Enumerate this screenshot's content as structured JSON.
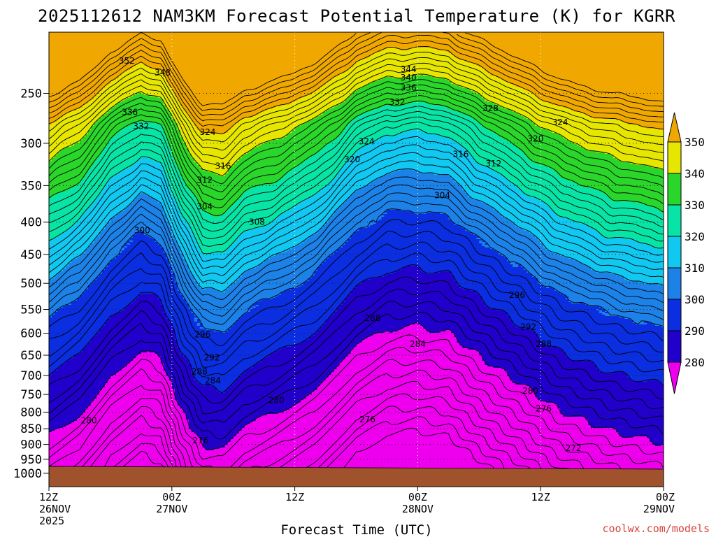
{
  "title": "2025112612 NAM3KM Forecast Potential Temperature (K) for KGRR",
  "credit": "coolwx.com/models",
  "chart_data": {
    "type": "contour",
    "title": "2025112612 NAM3KM Forecast Potential Temperature (K) for KGRR",
    "xlabel": "Forecast Time (UTC)",
    "ylabel": "",
    "y_axis": "pressure (hPa), log scale, inverted",
    "ylim": [
      1050,
      200
    ],
    "xlim_hours": [
      0,
      60
    ],
    "yticks": [
      250,
      300,
      350,
      400,
      450,
      500,
      550,
      600,
      650,
      700,
      750,
      800,
      850,
      900,
      950,
      1000
    ],
    "xticks": [
      {
        "hour": 0,
        "line1": "12Z",
        "line2": "26NOV",
        "line3": "2025"
      },
      {
        "hour": 12,
        "line1": "00Z",
        "line2": "27NOV",
        "line3": ""
      },
      {
        "hour": 24,
        "line1": "12Z",
        "line2": "",
        "line3": ""
      },
      {
        "hour": 36,
        "line1": "00Z",
        "line2": "28NOV",
        "line3": ""
      },
      {
        "hour": 48,
        "line1": "12Z",
        "line2": "",
        "line3": ""
      },
      {
        "hour": 60,
        "line1": "00Z",
        "line2": "29NOV",
        "line3": ""
      }
    ],
    "colorbar": {
      "levels": [
        280,
        290,
        300,
        310,
        320,
        330,
        340,
        350
      ],
      "colors": [
        "#ee00ee",
        "#8000f0",
        "#2200cc",
        "#0a2ee0",
        "#1c82e8",
        "#10c8f0",
        "#08e4a6",
        "#2ad62a",
        "#e6e600",
        "#f0a800"
      ]
    },
    "surface_color": "#a0522d",
    "contour_interval": 2,
    "contour_labels": [
      {
        "hour": 7.6,
        "p": 222,
        "value": "352"
      },
      {
        "hour": 11.1,
        "p": 232,
        "value": "348"
      },
      {
        "hour": 35.1,
        "p": 229,
        "value": "344"
      },
      {
        "hour": 35.1,
        "p": 236,
        "value": "340"
      },
      {
        "hour": 35.1,
        "p": 245,
        "value": "336"
      },
      {
        "hour": 34.0,
        "p": 258,
        "value": "332"
      },
      {
        "hour": 7.9,
        "p": 268,
        "value": "336"
      },
      {
        "hour": 9.0,
        "p": 282,
        "value": "332"
      },
      {
        "hour": 43.1,
        "p": 264,
        "value": "328"
      },
      {
        "hour": 49.9,
        "p": 278,
        "value": "324"
      },
      {
        "hour": 15.5,
        "p": 288,
        "value": "324"
      },
      {
        "hour": 31.0,
        "p": 298,
        "value": "324"
      },
      {
        "hour": 47.5,
        "p": 295,
        "value": "320"
      },
      {
        "hour": 29.6,
        "p": 318,
        "value": "320"
      },
      {
        "hour": 40.2,
        "p": 312,
        "value": "316"
      },
      {
        "hour": 17.0,
        "p": 326,
        "value": "316"
      },
      {
        "hour": 43.4,
        "p": 323,
        "value": "312"
      },
      {
        "hour": 15.2,
        "p": 343,
        "value": "312"
      },
      {
        "hour": 38.4,
        "p": 363,
        "value": "304"
      },
      {
        "hour": 15.2,
        "p": 378,
        "value": "304"
      },
      {
        "hour": 20.3,
        "p": 400,
        "value": "308"
      },
      {
        "hour": 9.1,
        "p": 412,
        "value": "300"
      },
      {
        "hour": 45.7,
        "p": 522,
        "value": "296"
      },
      {
        "hour": 31.6,
        "p": 568,
        "value": "288"
      },
      {
        "hour": 46.8,
        "p": 586,
        "value": "292"
      },
      {
        "hour": 15.0,
        "p": 603,
        "value": "296"
      },
      {
        "hour": 36.0,
        "p": 624,
        "value": "284"
      },
      {
        "hour": 48.3,
        "p": 624,
        "value": "288"
      },
      {
        "hour": 15.9,
        "p": 656,
        "value": "292"
      },
      {
        "hour": 14.7,
        "p": 690,
        "value": "288"
      },
      {
        "hour": 16.0,
        "p": 713,
        "value": "284"
      },
      {
        "hour": 47.0,
        "p": 740,
        "value": "280"
      },
      {
        "hour": 22.2,
        "p": 766,
        "value": "280"
      },
      {
        "hour": 48.3,
        "p": 790,
        "value": "276"
      },
      {
        "hour": 3.9,
        "p": 825,
        "value": "280"
      },
      {
        "hour": 31.1,
        "p": 822,
        "value": "276"
      },
      {
        "hour": 14.8,
        "p": 887,
        "value": "276"
      },
      {
        "hour": 51.2,
        "p": 913,
        "value": "272"
      }
    ]
  }
}
